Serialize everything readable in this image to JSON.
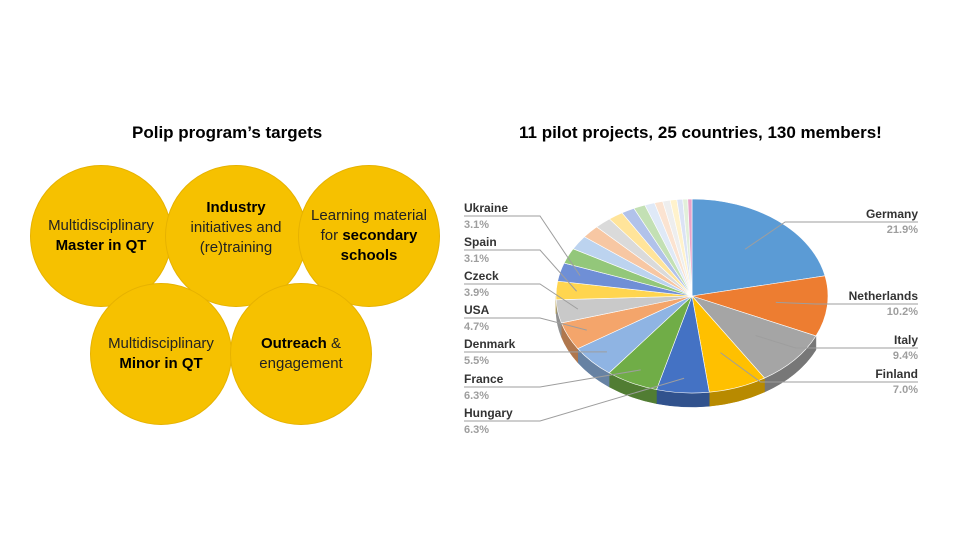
{
  "left": {
    "title": "Polip program’s targets",
    "circles": {
      "master": {
        "line1": "Multidisciplinary",
        "bold": "Master in QT"
      },
      "industry": {
        "bold": "Industry",
        "line2": "initiatives and",
        "line3": "(re)training"
      },
      "learning": {
        "line1": "Learning material",
        "pre": "for ",
        "bold1": "secondary",
        "bold2": "schools"
      },
      "minor": {
        "line1": "Multidisciplinary",
        "bold": "Minor in QT"
      },
      "outreach": {
        "bold": "Outreach",
        "rest": " &",
        "line2": "engagement"
      }
    },
    "circle_color": "#f6c100"
  },
  "chart_data": {
    "type": "pie",
    "title": "11 pilot projects, 25 countries, 130 members!",
    "slices": [
      {
        "label": "Germany",
        "value": 21.9,
        "display": "21.9%",
        "color": "#5b9bd5"
      },
      {
        "label": "Netherlands",
        "value": 10.2,
        "display": "10.2%",
        "color": "#ed7d31"
      },
      {
        "label": "Italy",
        "value": 9.4,
        "display": "9.4%",
        "color": "#a5a5a5"
      },
      {
        "label": "Finland",
        "value": 7.0,
        "display": "7.0%",
        "color": "#ffc000"
      },
      {
        "label": "",
        "value": 6.3,
        "display": "",
        "color": "#4472c4"
      },
      {
        "label": "",
        "value": 6.3,
        "display": "",
        "color": "#70ad47"
      },
      {
        "label": "",
        "value": 5.5,
        "display": "",
        "color": "#8fb4e3"
      },
      {
        "label": "",
        "value": 4.7,
        "display": "",
        "color": "#f4a56b"
      },
      {
        "label": "",
        "value": 3.9,
        "display": "",
        "color": "#c9c9c9"
      },
      {
        "label": "",
        "value": 3.1,
        "display": "",
        "color": "#ffd54f"
      },
      {
        "label": "",
        "value": 3.1,
        "display": "",
        "color": "#6f8fd6"
      },
      {
        "label": "",
        "value": 2.6,
        "display": "",
        "color": "#93c77a"
      },
      {
        "label": "",
        "value": 2.4,
        "display": "",
        "color": "#bcd3ef"
      },
      {
        "label": "",
        "value": 2.2,
        "display": "",
        "color": "#f7c7a3"
      },
      {
        "label": "",
        "value": 2.0,
        "display": "",
        "color": "#dadada"
      },
      {
        "label": "",
        "value": 1.8,
        "display": "",
        "color": "#ffe49a"
      },
      {
        "label": "",
        "value": 1.6,
        "display": "",
        "color": "#b1c2ea"
      },
      {
        "label": "",
        "value": 1.4,
        "display": "",
        "color": "#c3e0b4"
      },
      {
        "label": "",
        "value": 1.2,
        "display": "",
        "color": "#dfe9f7"
      },
      {
        "label": "",
        "value": 1.0,
        "display": "",
        "color": "#fbe3d1"
      },
      {
        "label": "",
        "value": 0.9,
        "display": "",
        "color": "#eeeeee"
      },
      {
        "label": "",
        "value": 0.8,
        "display": "",
        "color": "#fff2cc"
      },
      {
        "label": "",
        "value": 0.7,
        "display": "",
        "color": "#dbe3f5"
      },
      {
        "label": "",
        "value": 0.6,
        "display": "",
        "color": "#e2efda"
      },
      {
        "label": "",
        "value": 0.5,
        "display": "",
        "color": "#e9a3c9"
      }
    ],
    "left_labels": [
      {
        "label": "Ukraine",
        "display": "3.1%"
      },
      {
        "label": "Spain",
        "display": "3.1%"
      },
      {
        "label": "Czeck",
        "display": "3.9%"
      },
      {
        "label": "USA",
        "display": "4.7%"
      },
      {
        "label": "Denmark",
        "display": "5.5%"
      },
      {
        "label": "France",
        "display": "6.3%"
      },
      {
        "label": "Hungary",
        "display": "6.3%"
      }
    ],
    "right_labels": [
      {
        "label": "Germany",
        "display": "21.9%"
      },
      {
        "label": "Netherlands",
        "display": "10.2%"
      },
      {
        "label": "Italy",
        "display": "9.4%"
      },
      {
        "label": "Finland",
        "display": "7.0%"
      }
    ]
  }
}
